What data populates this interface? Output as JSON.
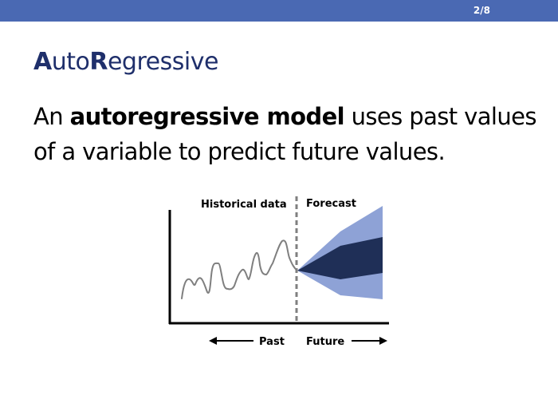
{
  "header": {
    "slide_counter": "2/8",
    "bar_color": "#4a69b3"
  },
  "title": {
    "part1_cap": "A",
    "part1_rest": "uto",
    "part2_cap": "R",
    "part2_rest": "egressive"
  },
  "body": {
    "prefix": "An ",
    "bold": "autoregressive model",
    "suffix": " uses past values of a variable to predict future values."
  },
  "diagram": {
    "label_historical": "Historical data",
    "label_forecast": "Forecast",
    "label_past": "Past",
    "label_future": "Future",
    "colors": {
      "outer_band": "#8ea2d6",
      "inner_band": "#1f2f57",
      "series_line": "#7f7f7f",
      "divider": "#7f7f7f"
    }
  }
}
